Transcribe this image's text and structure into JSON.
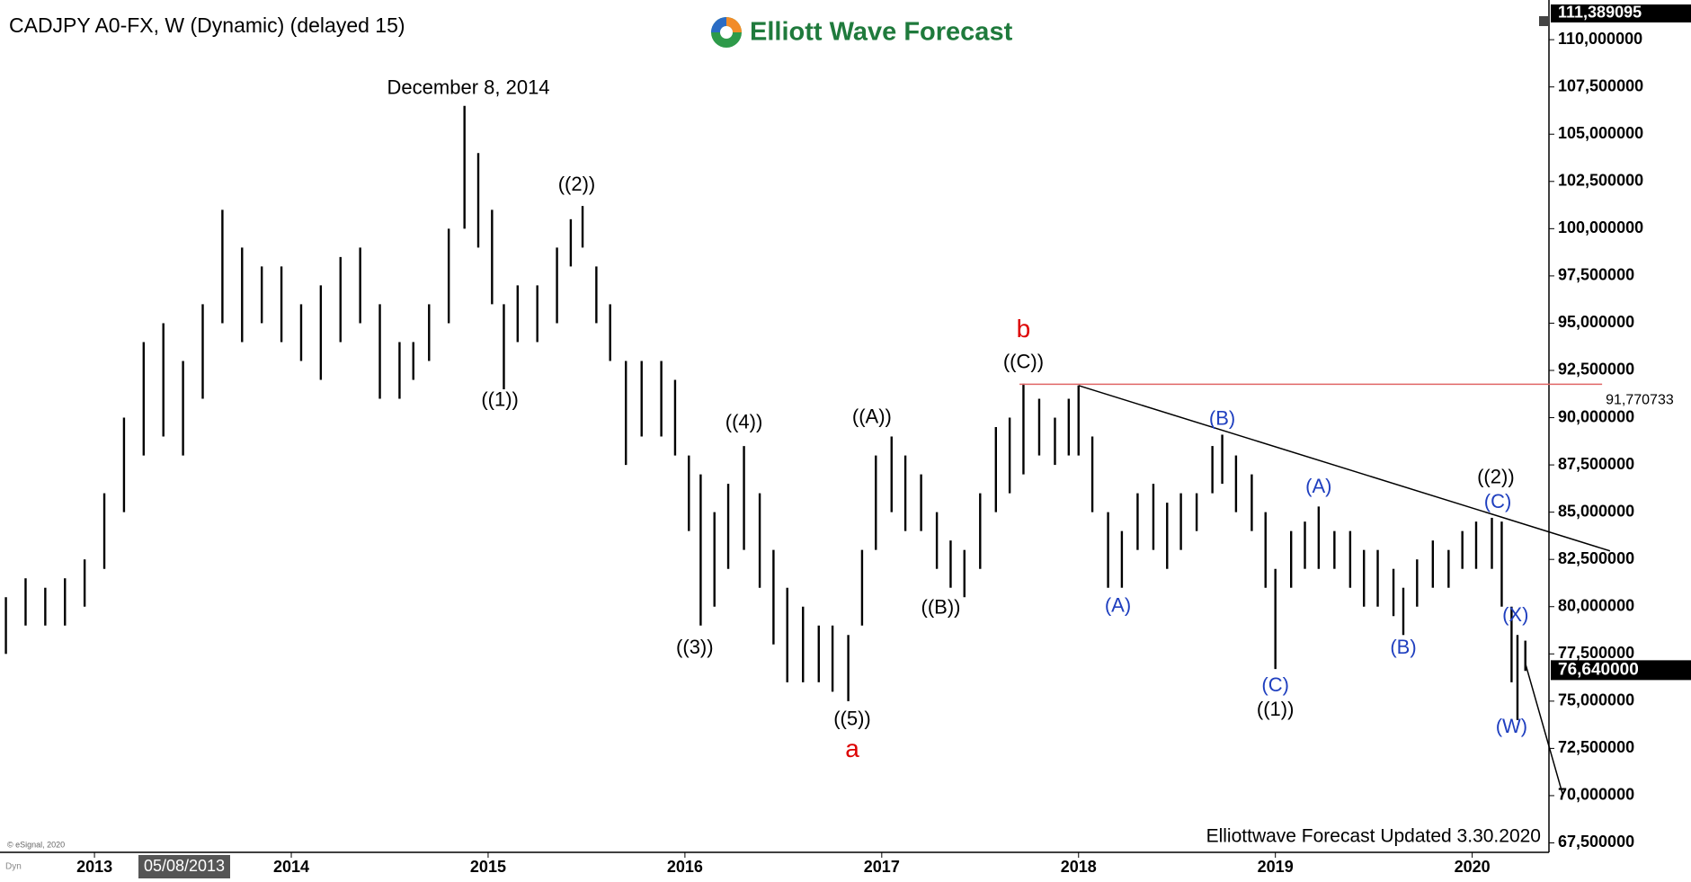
{
  "chart_data": {
    "type": "ohlc",
    "title": "CADJPY A0-FX, W (Dynamic) (delayed 15)",
    "brand": "Elliott Wave Forecast",
    "footer": "Elliottwave Forecast Updated 3.30.2020",
    "copyright": "© eSignal, 2020",
    "cursor_date": "05/08/2013",
    "mode_label": "Dyn",
    "color": "#000000",
    "xlim": [
      2012.52,
      2020.39
    ],
    "ylim": [
      67.0,
      112.1
    ],
    "xticks": [
      2013,
      2014,
      2015,
      2016,
      2017,
      2018,
      2019,
      2020
    ],
    "yticks": [
      {
        "value": 67.5,
        "label": "67,500000"
      },
      {
        "value": 70,
        "label": "70,000000"
      },
      {
        "value": 72.5,
        "label": "72,500000"
      },
      {
        "value": 75,
        "label": "75,000000"
      },
      {
        "value": 77.5,
        "label": "77,500000"
      },
      {
        "value": 80,
        "label": "80,000000"
      },
      {
        "value": 82.5,
        "label": "82,500000"
      },
      {
        "value": 85,
        "label": "85,000000"
      },
      {
        "value": 87.5,
        "label": "87,500000"
      },
      {
        "value": 90,
        "label": "90,000000"
      },
      {
        "value": 92.5,
        "label": "92,500000"
      },
      {
        "value": 95,
        "label": "95,000000"
      },
      {
        "value": 97.5,
        "label": "97,500000"
      },
      {
        "value": 100,
        "label": "100,000000"
      },
      {
        "value": 102.5,
        "label": "102,500000"
      },
      {
        "value": 105,
        "label": "105,000000"
      },
      {
        "value": 107.5,
        "label": "107,500000"
      },
      {
        "value": 110,
        "label": "110,000000"
      }
    ],
    "top_value": {
      "value": 111.389095,
      "label": "111,389095"
    },
    "last_value": {
      "value": 76.64,
      "label": "76,640000"
    },
    "x": [
      2012.55,
      2012.65,
      2012.75,
      2012.85,
      2012.95,
      2013.05,
      2013.15,
      2013.25,
      2013.35,
      2013.45,
      2013.55,
      2013.65,
      2013.75,
      2013.85,
      2013.95,
      2014.05,
      2014.15,
      2014.25,
      2014.35,
      2014.45,
      2014.55,
      2014.62,
      2014.7,
      2014.8,
      2014.88,
      2014.95,
      2015.02,
      2015.08,
      2015.15,
      2015.25,
      2015.35,
      2015.42,
      2015.48,
      2015.55,
      2015.62,
      2015.7,
      2015.78,
      2015.88,
      2015.95,
      2016.02,
      2016.08,
      2016.15,
      2016.22,
      2016.3,
      2016.38,
      2016.45,
      2016.52,
      2016.6,
      2016.68,
      2016.75,
      2016.83,
      2016.9,
      2016.97,
      2017.05,
      2017.12,
      2017.2,
      2017.28,
      2017.35,
      2017.42,
      2017.5,
      2017.58,
      2017.65,
      2017.72,
      2017.8,
      2017.88,
      2017.95,
      2018.0,
      2018.07,
      2018.15,
      2018.22,
      2018.3,
      2018.38,
      2018.45,
      2018.52,
      2018.6,
      2018.68,
      2018.73,
      2018.8,
      2018.88,
      2018.95,
      2019.0,
      2019.08,
      2019.15,
      2019.22,
      2019.3,
      2019.38,
      2019.45,
      2019.52,
      2019.6,
      2019.65,
      2019.72,
      2019.8,
      2019.88,
      2019.95,
      2020.02,
      2020.1,
      2020.15,
      2020.2,
      2020.23,
      2020.27
    ],
    "high": [
      80.5,
      81.5,
      81,
      81.5,
      82.5,
      86,
      90,
      94,
      95,
      93,
      96,
      101,
      99,
      98,
      98,
      96,
      97,
      98.5,
      99,
      96,
      94,
      94,
      96,
      100,
      106.5,
      104,
      101,
      96,
      97,
      97,
      99,
      100.5,
      101.2,
      98,
      96,
      93,
      93,
      93,
      92,
      88,
      87,
      85,
      86.5,
      88.5,
      86,
      83,
      81,
      80,
      79,
      79,
      78.5,
      83,
      88,
      89,
      88,
      87,
      85,
      83.5,
      83,
      86,
      89.5,
      90,
      91.8,
      91,
      90,
      91,
      91.7,
      89,
      85,
      84,
      86,
      86.5,
      85.5,
      86,
      86,
      88.5,
      89.1,
      88,
      87,
      85,
      82,
      84,
      84.5,
      85.3,
      84,
      84,
      83,
      83,
      82,
      81,
      82.5,
      83.5,
      83,
      84,
      84.5,
      84.7,
      84.5,
      80,
      78.5,
      78.2
    ],
    "low": [
      77.5,
      79,
      79,
      79,
      80,
      82,
      85,
      88,
      89,
      88,
      91,
      95,
      94,
      95,
      94,
      93,
      92,
      94,
      95,
      91,
      91,
      92,
      93,
      95,
      100,
      99,
      96,
      91.5,
      94,
      94,
      95,
      98,
      99,
      95,
      93,
      87.5,
      89,
      89,
      88,
      84,
      79,
      80,
      82,
      83,
      81,
      78,
      76,
      76,
      76,
      75.5,
      75,
      79,
      83,
      85,
      84,
      84,
      82,
      81,
      80.5,
      82,
      85,
      86,
      87,
      88,
      87.5,
      88,
      88,
      85,
      81,
      81,
      83,
      83,
      82,
      83,
      84,
      86,
      86.5,
      85,
      84,
      81,
      76.7,
      81,
      82,
      82,
      82,
      81,
      80,
      80,
      79.5,
      78.5,
      80,
      81,
      81,
      82,
      82,
      82,
      80,
      76,
      74,
      76.6
    ],
    "reference_line": {
      "value": 91.770733,
      "value_label": "91,770733",
      "x": [
        2017.7,
        2020.66
      ],
      "color": "#e06666"
    },
    "trend_lines": [
      {
        "x": [
          2018.0,
          2020.7
        ],
        "y": [
          91.7,
          82.95
        ],
        "color": "#000000"
      },
      {
        "x": [
          2020.27,
          2020.46
        ],
        "y": [
          77.0,
          70.06
        ],
        "color": "#000000"
      }
    ],
    "annotations": [
      {
        "text": "December 8, 2014",
        "x": 2014.9,
        "y": 107.4,
        "color": "#000000"
      },
      {
        "text": "((1))",
        "x": 2015.06,
        "y": 90.9,
        "color": "#000000"
      },
      {
        "text": "((2))",
        "x": 2015.45,
        "y": 102.3,
        "color": "#000000"
      },
      {
        "text": "((3))",
        "x": 2016.05,
        "y": 77.8,
        "color": "#000000"
      },
      {
        "text": "((4))",
        "x": 2016.3,
        "y": 89.7,
        "color": "#000000"
      },
      {
        "text": "((5))",
        "x": 2016.85,
        "y": 74.0,
        "color": "#000000"
      },
      {
        "text": "a",
        "x": 2016.85,
        "y": 72.4,
        "color": "#dd0000"
      },
      {
        "text": "((A))",
        "x": 2016.95,
        "y": 90.0,
        "color": "#000000"
      },
      {
        "text": "((B))",
        "x": 2017.3,
        "y": 79.9,
        "color": "#000000"
      },
      {
        "text": "((C))",
        "x": 2017.72,
        "y": 92.9,
        "color": "#000000"
      },
      {
        "text": "b",
        "x": 2017.72,
        "y": 94.6,
        "color": "#dd0000"
      },
      {
        "text": "(A)",
        "x": 2018.2,
        "y": 80.0,
        "color": "#1f3fbf"
      },
      {
        "text": "(B)",
        "x": 2018.73,
        "y": 89.9,
        "color": "#1f3fbf"
      },
      {
        "text": "(C)",
        "x": 2019.0,
        "y": 75.8,
        "color": "#1f3fbf"
      },
      {
        "text": "((1))",
        "x": 2019.0,
        "y": 74.5,
        "color": "#000000"
      },
      {
        "text": "(A)",
        "x": 2019.22,
        "y": 86.3,
        "color": "#1f3fbf"
      },
      {
        "text": "(B)",
        "x": 2019.65,
        "y": 77.8,
        "color": "#1f3fbf"
      },
      {
        "text": "((2))",
        "x": 2020.12,
        "y": 86.8,
        "color": "#000000"
      },
      {
        "text": "(C)",
        "x": 2020.13,
        "y": 85.5,
        "color": "#1f3fbf"
      },
      {
        "text": "(X)",
        "x": 2020.22,
        "y": 79.5,
        "color": "#1f3fbf"
      },
      {
        "text": "(W)",
        "x": 2020.2,
        "y": 73.6,
        "color": "#1f3fbf"
      }
    ]
  }
}
